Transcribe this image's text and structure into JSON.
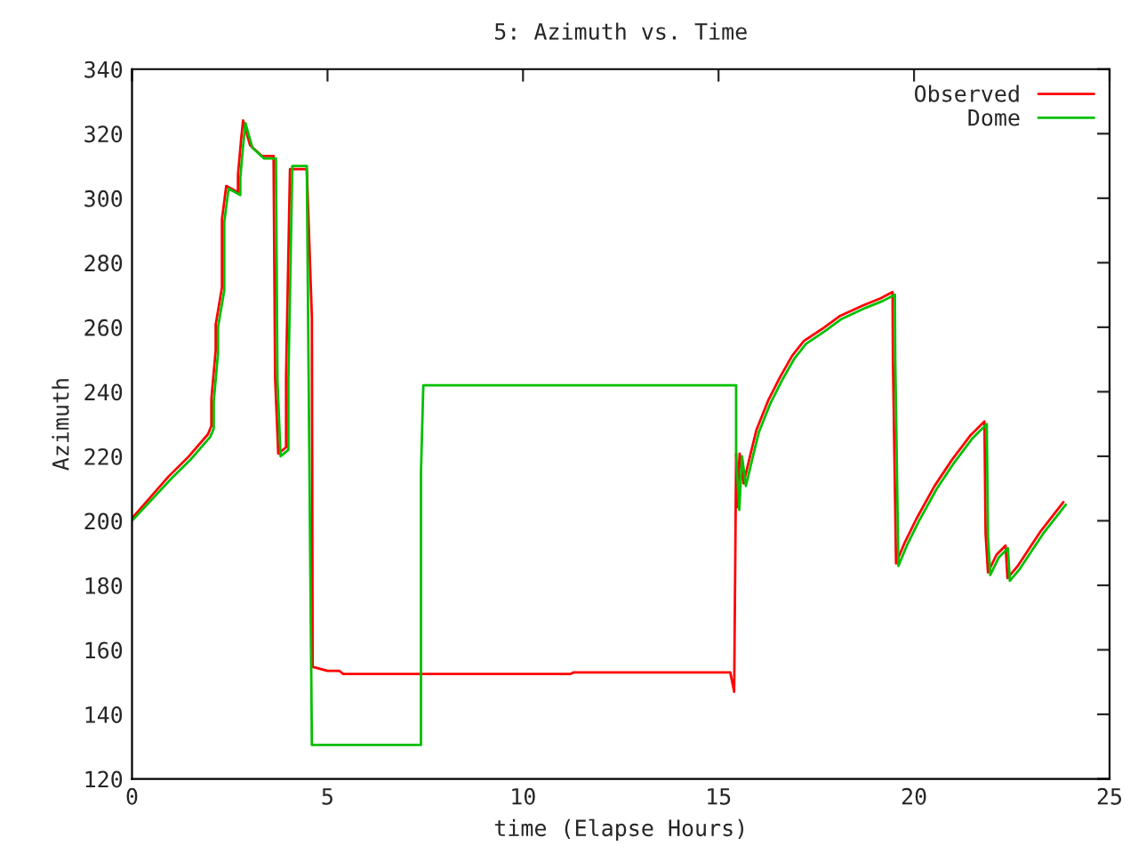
{
  "chart_data": {
    "type": "line",
    "title": "5: Azimuth vs. Time",
    "xlabel": "time (Elapse Hours)",
    "ylabel": "Azimuth",
    "xlim": [
      0,
      25
    ],
    "ylim": [
      120,
      340
    ],
    "xticks": [
      0,
      5,
      10,
      15,
      20,
      25
    ],
    "yticks": [
      120,
      140,
      160,
      180,
      200,
      220,
      240,
      260,
      280,
      300,
      320,
      340
    ],
    "grid": false,
    "legend": "top right",
    "marker": "none",
    "line_style": "solid",
    "series": [
      {
        "name": "Observed",
        "color": "#ff0000",
        "x": [
          0,
          0.94,
          1.44,
          1.94,
          2.03,
          2.03,
          2.14,
          2.14,
          2.3,
          2.3,
          2.41,
          2.71,
          2.71,
          2.79,
          2.84,
          3.02,
          3.32,
          3.62,
          3.66,
          3.74,
          3.94,
          3.94,
          4.04,
          4.47,
          4.6,
          4.62,
          5.0,
          5.3,
          5.4,
          11.2,
          11.3,
          15.3,
          15.4,
          15.45,
          15.47,
          15.54,
          15.64,
          15.82,
          15.97,
          16.27,
          16.58,
          16.88,
          17.18,
          17.64,
          18.09,
          18.7,
          19.15,
          19.45,
          19.46,
          19.54,
          19.76,
          20.06,
          20.52,
          20.97,
          21.43,
          21.8,
          21.83,
          21.89,
          22.11,
          22.34,
          22.39,
          22.64,
          23.24,
          23.82
        ],
        "values": [
          200.8,
          213.8,
          219.8,
          226.8,
          229.4,
          237.8,
          252.8,
          260.8,
          272.3,
          293.4,
          303.8,
          301.8,
          307.2,
          318.2,
          324.1,
          316.4,
          313.1,
          313.1,
          244.3,
          220.8,
          222.8,
          244.8,
          309,
          309,
          263,
          154.7,
          153.5,
          153.5,
          152.5,
          152.5,
          153,
          153,
          147,
          220.8,
          204.2,
          220.8,
          211.6,
          220.8,
          228.2,
          237.3,
          244.7,
          251.1,
          255.7,
          259.4,
          263.4,
          266.8,
          269,
          270.9,
          250.2,
          186.8,
          193.2,
          200.6,
          210.7,
          218.9,
          226.3,
          230.8,
          196,
          184,
          189.5,
          192.3,
          182.2,
          185.8,
          196.8,
          205.8
        ]
      },
      {
        "name": "Dome",
        "color": "#00c000",
        "x": [
          0,
          1,
          1.5,
          2,
          2.09,
          2.09,
          2.2,
          2.2,
          2.36,
          2.36,
          2.47,
          2.77,
          2.77,
          2.85,
          2.9,
          3.08,
          3.38,
          3.68,
          3.72,
          3.8,
          4.0,
          4.0,
          4.1,
          4.47,
          4.6,
          7.39,
          7.39,
          7.45,
          15.45,
          15.45,
          15.53,
          15.6,
          15.7,
          15.88,
          16.03,
          16.33,
          16.64,
          16.94,
          17.24,
          17.7,
          18.15,
          18.76,
          19.21,
          19.51,
          19.52,
          19.6,
          19.82,
          20.12,
          20.58,
          21.03,
          21.49,
          21.86,
          21.89,
          21.95,
          22.17,
          22.4,
          22.45,
          22.7,
          23.3,
          23.88
        ],
        "values": [
          200,
          213,
          219,
          226,
          228.6,
          237,
          252,
          260,
          271.5,
          292.6,
          303,
          301,
          306.4,
          317.4,
          323.3,
          315.6,
          312.3,
          312.3,
          243.5,
          220,
          222,
          244,
          310,
          310,
          130.5,
          130.5,
          215,
          242,
          242,
          220,
          203.4,
          220,
          210.8,
          220,
          227.4,
          236.5,
          243.9,
          250.3,
          254.9,
          258.6,
          262.6,
          266,
          268.2,
          270.1,
          249.4,
          186,
          192.4,
          199.8,
          209.9,
          218.1,
          225.5,
          230,
          195.2,
          183.2,
          188.7,
          191.5,
          181.4,
          185,
          196,
          205
        ]
      }
    ]
  }
}
